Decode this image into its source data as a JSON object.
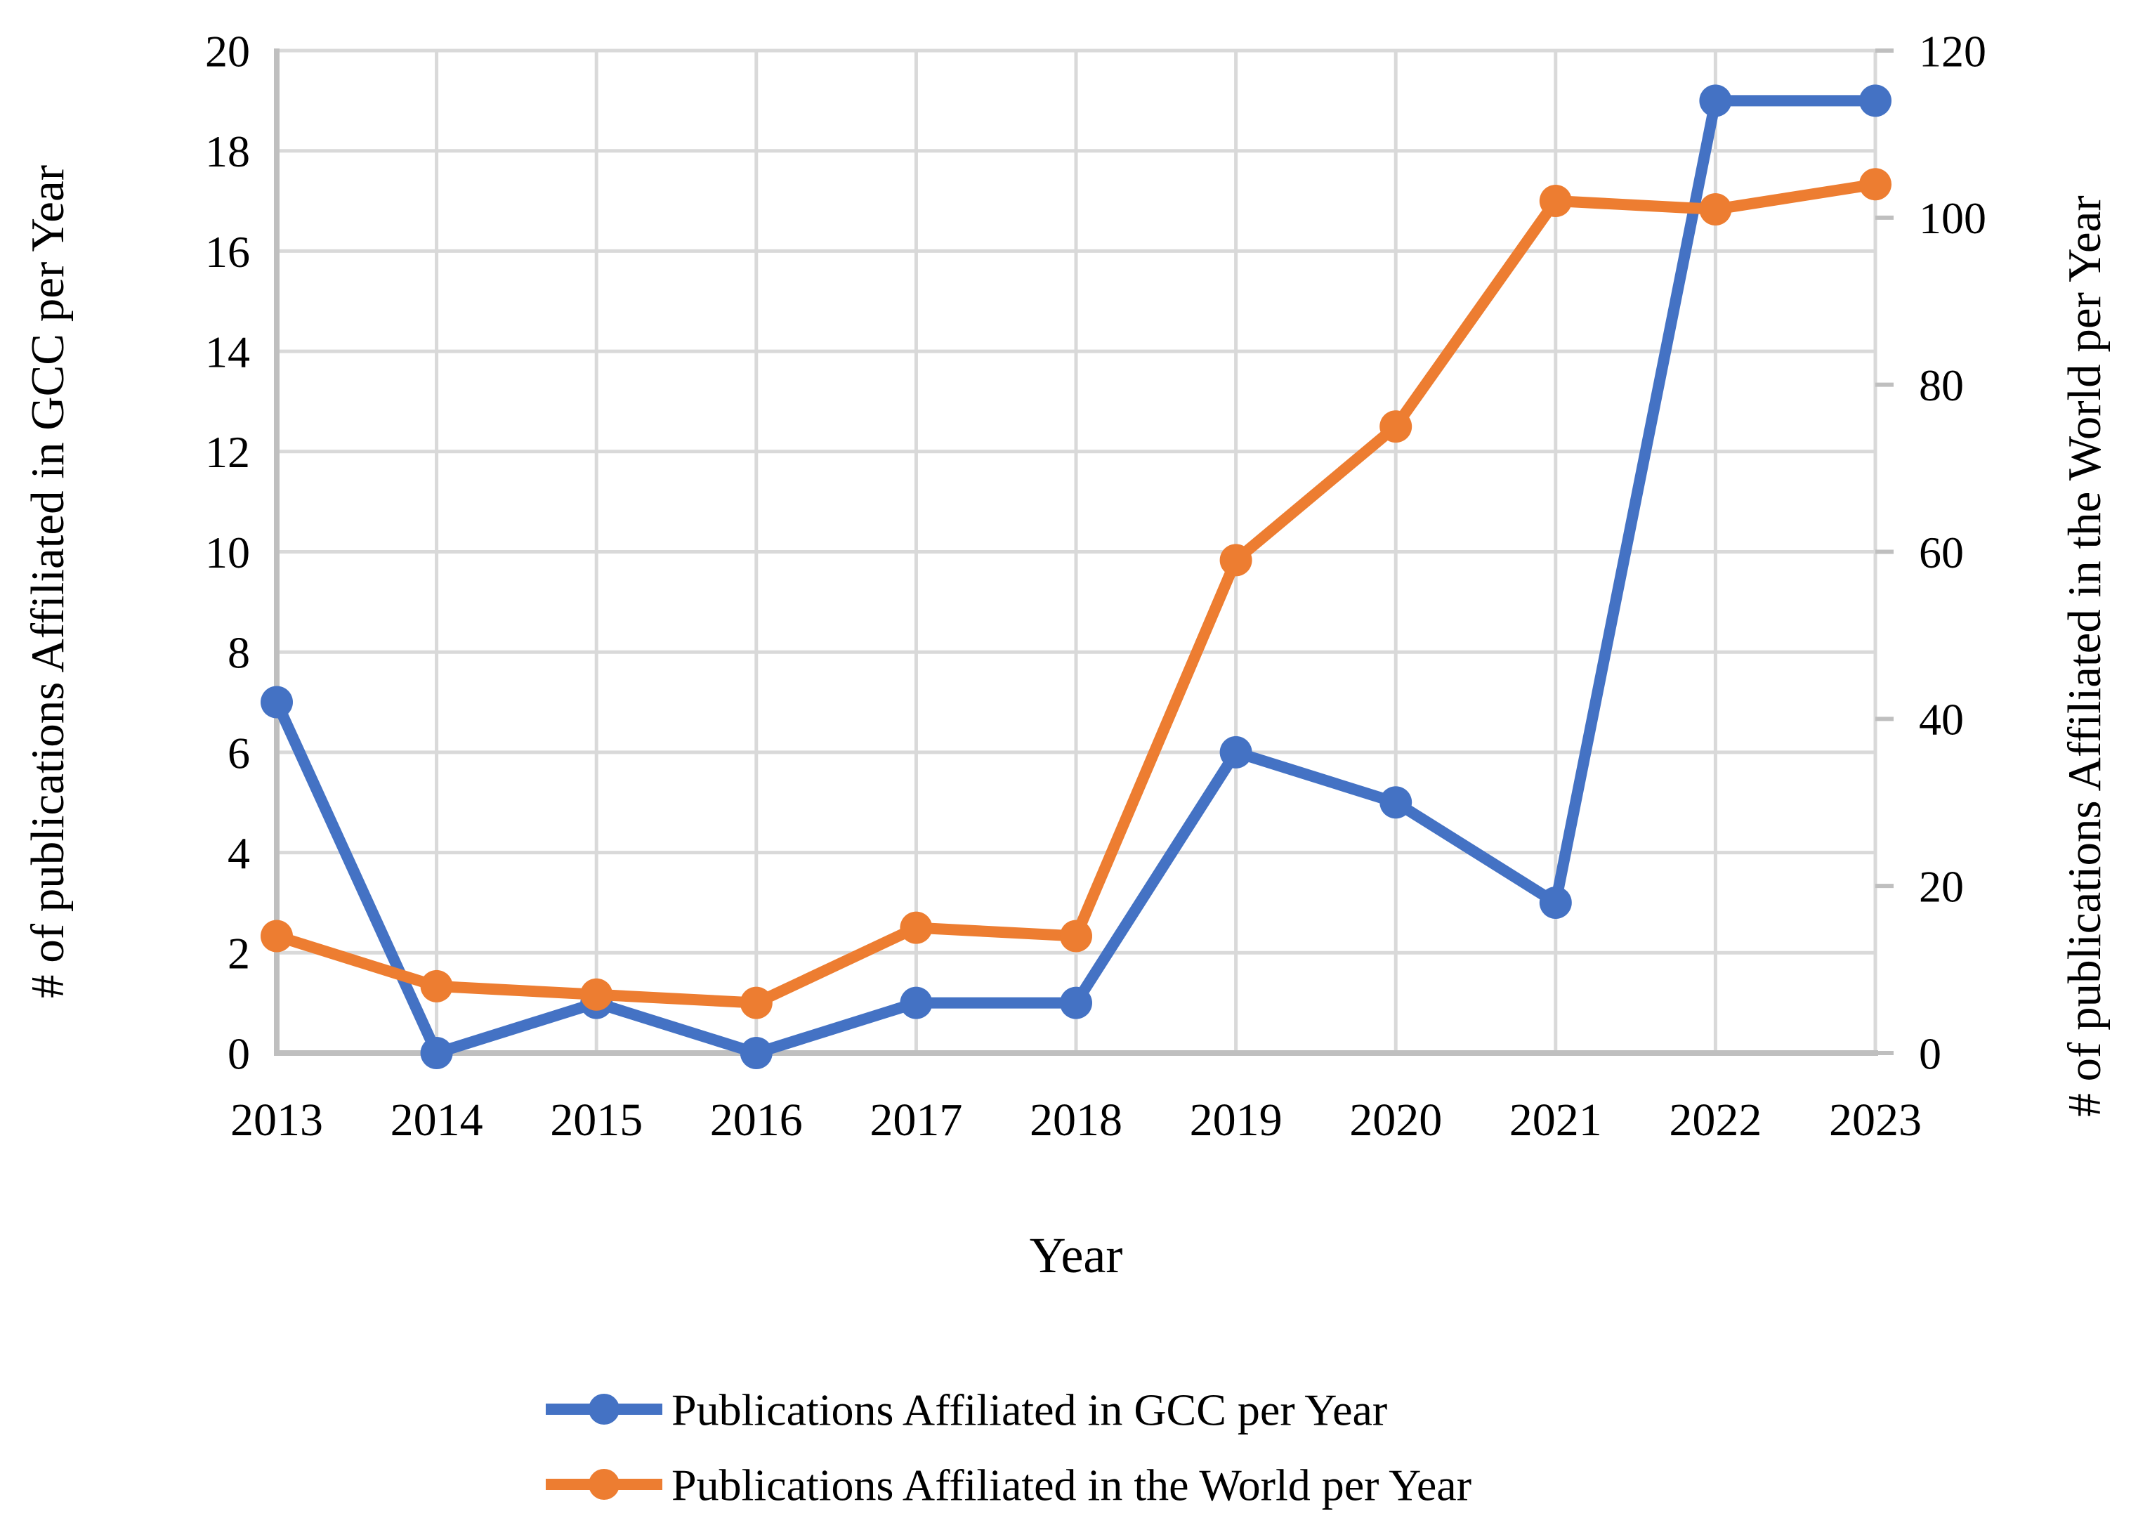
{
  "chart_data": {
    "type": "line",
    "title": "",
    "xlabel": "Year",
    "x": [
      "2013",
      "2014",
      "2015",
      "2016",
      "2017",
      "2018",
      "2019",
      "2020",
      "2021",
      "2022",
      "2023"
    ],
    "series": [
      {
        "id": "gcc",
        "name": "Publications Affiliated in GCC per Year",
        "axis": "left",
        "color": "#4472C4",
        "values": [
          7,
          0,
          1,
          0,
          1,
          1,
          6,
          5,
          3,
          19,
          19
        ]
      },
      {
        "id": "world",
        "name": "Publications Affiliated in the World per Year",
        "axis": "right",
        "color": "#ED7D31",
        "values": [
          14,
          8,
          7,
          6,
          15,
          14,
          59,
          75,
          102,
          101,
          104
        ]
      }
    ],
    "left_axis": {
      "label": "# of publications Affiliated in GCC per Year",
      "min": 0,
      "max": 20,
      "step": 2,
      "ticks": [
        "0",
        "2",
        "4",
        "6",
        "8",
        "10",
        "12",
        "14",
        "16",
        "18",
        "20"
      ]
    },
    "right_axis": {
      "label": "# of publications Affiliated in the World per Year",
      "min": 0,
      "max": 120,
      "step": 20,
      "ticks": [
        "0",
        "20",
        "40",
        "60",
        "80",
        "100",
        "120"
      ]
    },
    "grid": true,
    "legend_position": "bottom",
    "colors": {
      "gridline": "#D9D9D9",
      "axis_line": "#BFBFBF",
      "text": "#000000",
      "background": "#FFFFFF"
    }
  }
}
